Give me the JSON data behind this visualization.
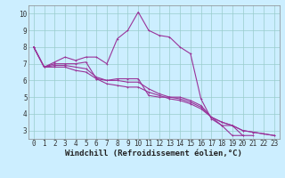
{
  "xlabel": "Windchill (Refroidissement éolien,°C)",
  "background_color": "#cceeff",
  "line_color": "#993399",
  "grid_color": "#99cccc",
  "x_values": [
    0,
    1,
    2,
    3,
    4,
    5,
    6,
    7,
    8,
    9,
    10,
    11,
    12,
    13,
    14,
    15,
    16,
    17,
    18,
    19,
    20,
    21,
    22,
    23
  ],
  "series1": [
    8.0,
    6.8,
    7.1,
    7.4,
    7.2,
    7.4,
    7.4,
    7.0,
    8.5,
    9.0,
    10.1,
    9.0,
    8.7,
    8.6,
    8.0,
    7.6,
    4.9,
    3.7,
    3.3,
    2.7,
    2.7,
    null,
    null,
    null
  ],
  "series2": [
    8.0,
    6.8,
    7.0,
    7.0,
    7.0,
    7.1,
    6.1,
    6.0,
    6.1,
    6.1,
    6.1,
    5.1,
    5.0,
    5.0,
    5.0,
    4.8,
    4.5,
    3.8,
    3.3,
    3.3,
    2.7,
    2.7,
    null,
    null
  ],
  "series3": [
    8.0,
    6.8,
    6.9,
    6.9,
    6.8,
    6.7,
    6.2,
    6.0,
    6.0,
    5.9,
    5.9,
    5.5,
    5.2,
    5.0,
    4.9,
    4.7,
    4.4,
    3.8,
    3.5,
    3.3,
    3.0,
    2.9,
    2.8,
    2.7
  ],
  "series4": [
    8.0,
    6.8,
    6.8,
    6.8,
    6.6,
    6.5,
    6.1,
    5.8,
    5.7,
    5.6,
    5.6,
    5.3,
    5.1,
    4.9,
    4.8,
    4.6,
    4.3,
    3.8,
    3.5,
    3.3,
    3.0,
    2.9,
    2.8,
    2.7
  ],
  "ylim": [
    2.5,
    10.5
  ],
  "xlim": [
    -0.5,
    23.5
  ],
  "yticks": [
    3,
    4,
    5,
    6,
    7,
    8,
    9,
    10
  ],
  "xticks": [
    0,
    1,
    2,
    3,
    4,
    5,
    6,
    7,
    8,
    9,
    10,
    11,
    12,
    13,
    14,
    15,
    16,
    17,
    18,
    19,
    20,
    21,
    22,
    23
  ],
  "tick_fontsize": 5.5,
  "xlabel_fontsize": 6.5,
  "linewidth": 0.8,
  "markersize": 2.0
}
